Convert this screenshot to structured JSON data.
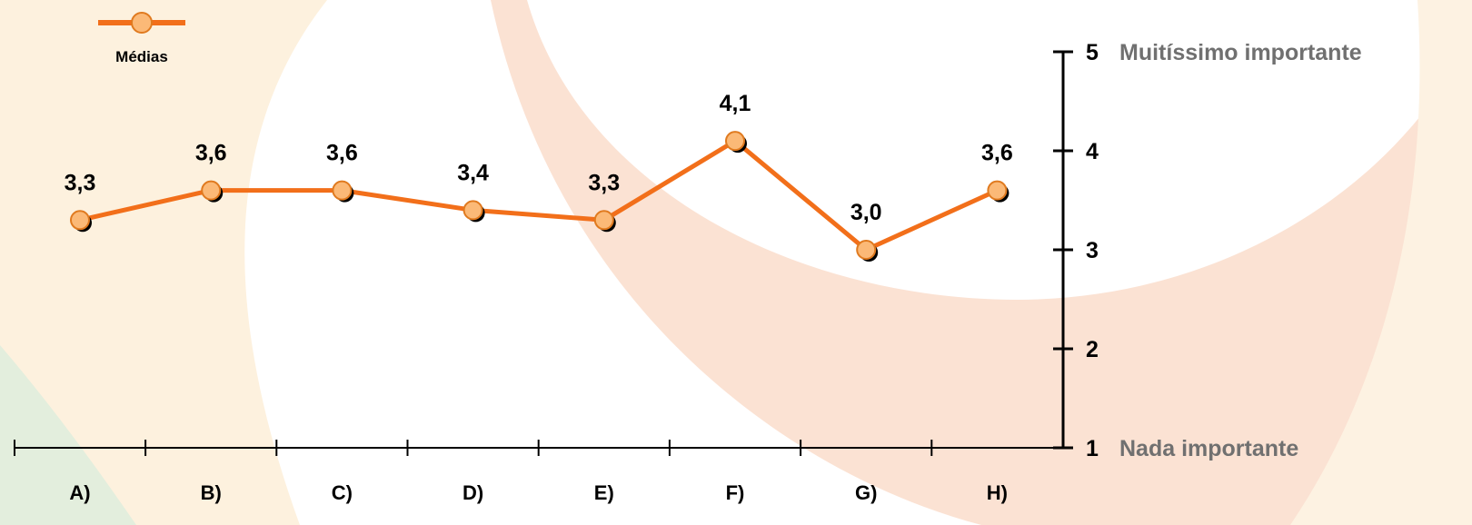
{
  "legend": {
    "label": "Médias"
  },
  "y_axis": {
    "ticks": [
      "1",
      "2",
      "3",
      "4",
      "5"
    ],
    "top_label": "Muitíssimo importante",
    "bottom_label": "Nada importante"
  },
  "colors": {
    "line": "#f26f1a",
    "marker_fill": "#fbb977",
    "marker_stroke": "#e07a1f",
    "shadow": "#000000",
    "axis": "#000000",
    "value_text": "#000000",
    "scale_text": "#707070"
  },
  "chart_data": {
    "type": "line",
    "categories": [
      "A)",
      "B)",
      "C)",
      "D)",
      "E)",
      "F)",
      "G)",
      "H)"
    ],
    "series": [
      {
        "name": "Médias",
        "values": [
          3.3,
          3.6,
          3.6,
          3.4,
          3.3,
          4.1,
          3.0,
          3.6
        ],
        "labels": [
          "3,3",
          "3,6",
          "3,6",
          "3,4",
          "3,3",
          "4,1",
          "3,0",
          "3,6"
        ]
      }
    ],
    "ylim": [
      1,
      5
    ],
    "grid": false,
    "legend_position": "top-left"
  }
}
